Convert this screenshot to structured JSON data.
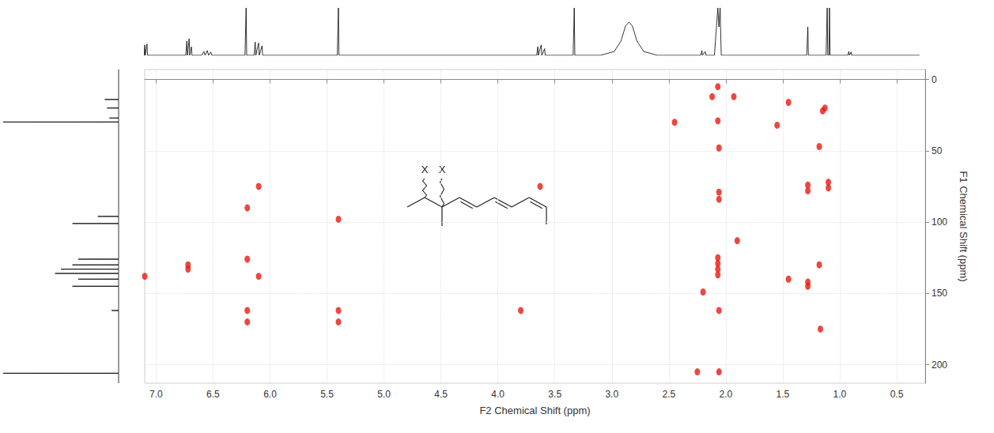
{
  "chart_data": {
    "type": "scatter",
    "x_label": "F2 Chemical Shift (ppm)",
    "y_label": "F1 Chemical Shift (ppm)",
    "color": "#e8190f",
    "marker": "circle",
    "grid": true,
    "xlim": [
      7.1,
      0.25
    ],
    "xticks": [
      {
        "value": 7,
        "label": "7.0"
      },
      6.5,
      {
        "value": 6,
        "label": "6.0"
      },
      5.5,
      {
        "value": 5,
        "label": "5.0"
      },
      4.5,
      {
        "value": 4,
        "label": "4.0"
      },
      3.5,
      {
        "value": 3,
        "label": "3.0"
      },
      2.5,
      {
        "value": 2,
        "label": "2.0"
      },
      1.5,
      {
        "value": 1,
        "label": "1.0"
      },
      0.5
    ],
    "ylim": [
      213,
      -7
    ],
    "yticks": [
      0,
      50,
      100,
      150,
      200
    ],
    "x": [
      2.07,
      2.07,
      2.12,
      1.93,
      2.06,
      2.06,
      2.06,
      2.07,
      2.07,
      2.07,
      2.07,
      2.06,
      2.06,
      2.2,
      1.9,
      1.28,
      1.28,
      1.1,
      1.1,
      1.28,
      1.28,
      7.1,
      6.72,
      6.72,
      6.2,
      6.2,
      6.2,
      6.2,
      6.1,
      6.1,
      5.4,
      3.63,
      1.15,
      1.13,
      1.18,
      1.17,
      5.4,
      5.4,
      2.45,
      1.55,
      1.45,
      3.8,
      2.25,
      1.18,
      1.45
    ],
    "values": [
      5,
      29,
      12,
      12,
      48,
      79,
      84,
      125,
      129,
      133,
      137,
      162,
      205,
      149,
      113,
      74,
      78,
      72,
      76,
      142,
      145,
      138,
      130,
      133,
      90,
      126,
      162,
      170,
      75,
      138,
      98,
      75,
      22,
      20,
      47,
      175,
      162,
      170,
      30,
      32,
      16,
      162,
      205,
      130,
      140
    ]
  },
  "f2_projection": {
    "type": "line",
    "color": "#000000",
    "ylim": [
      0,
      100
    ],
    "x": [
      7.1,
      7.105,
      7.1,
      7.095,
      7.08,
      7.075,
      6.74,
      6.73,
      6.725,
      6.71,
      6.705,
      6.69,
      6.685,
      6.6,
      6.58,
      6.57,
      6.55,
      6.54,
      6.52,
      6.51,
      6.22,
      6.21,
      6.205,
      6.14,
      6.13,
      6.125,
      6.1,
      6.095,
      6.07,
      6.065,
      5.41,
      5.4,
      5.395,
      3.66,
      3.65,
      3.645,
      3.62,
      3.615,
      3.59,
      3.585,
      3.34,
      3.33,
      3.325,
      3.1,
      2.98,
      2.92,
      2.88,
      2.85,
      2.82,
      2.78,
      2.72,
      2.6,
      2.22,
      2.21,
      2.205,
      2.18,
      2.175,
      2.1,
      2.07,
      2.06,
      2.05,
      2.04,
      1.29,
      1.28,
      1.275,
      1.12,
      1.11,
      1.105,
      1.095,
      1.09,
      1.085,
      0.93,
      0.92,
      0.915,
      0.9,
      0.895,
      0.3
    ],
    "values": [
      0,
      0,
      22,
      0,
      24,
      0,
      0,
      30,
      0,
      35,
      0,
      18,
      0,
      0,
      8,
      0,
      10,
      0,
      7,
      0,
      0,
      100,
      0,
      0,
      28,
      0,
      26,
      0,
      20,
      0,
      0,
      100,
      0,
      0,
      18,
      0,
      22,
      0,
      14,
      0,
      0,
      100,
      0,
      0,
      8,
      30,
      62,
      70,
      62,
      30,
      8,
      0,
      0,
      10,
      0,
      8,
      0,
      0,
      100,
      60,
      100,
      0,
      0,
      60,
      0,
      0,
      100,
      0,
      0,
      100,
      0,
      0,
      8,
      0,
      7,
      0,
      0
    ]
  },
  "f1_projection": {
    "type": "line",
    "color": "#000000",
    "xlim": [
      100,
      0
    ],
    "y": [
      -7,
      13.9,
      14,
      14.1,
      19.9,
      20,
      20.1,
      26.9,
      27,
      27.1,
      29.7,
      29.8,
      29.9,
      95.9,
      96,
      96.1,
      100.9,
      101,
      101.1,
      125.9,
      126,
      126.1,
      129.9,
      130,
      130.1,
      132.9,
      133,
      133.1,
      135.9,
      136,
      136.1,
      139.9,
      140,
      140.1,
      144.9,
      145,
      145.1,
      161.9,
      162,
      162.1,
      205.9,
      206,
      206.1,
      213
    ],
    "values": [
      0,
      0,
      12,
      0,
      0,
      10,
      0,
      0,
      8,
      0,
      0,
      100,
      0,
      0,
      18,
      0,
      0,
      40,
      0,
      0,
      35,
      0,
      0,
      40,
      0,
      0,
      50,
      0,
      0,
      55,
      0,
      0,
      35,
      0,
      0,
      40,
      0,
      0,
      6,
      0,
      0,
      100,
      0,
      0
    ]
  },
  "structure": {
    "labels": [
      "X",
      "X"
    ]
  }
}
